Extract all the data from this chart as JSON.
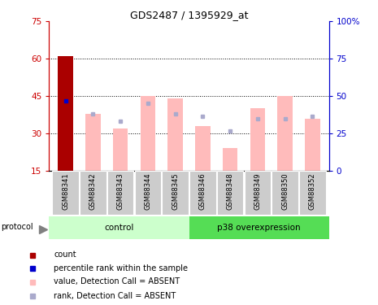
{
  "title": "GDS2487 / 1395929_at",
  "samples": [
    "GSM88341",
    "GSM88342",
    "GSM88343",
    "GSM88344",
    "GSM88345",
    "GSM88346",
    "GSM88348",
    "GSM88349",
    "GSM88350",
    "GSM88352"
  ],
  "value_bars": [
    61,
    38,
    32,
    45,
    44,
    33,
    24,
    40,
    45,
    36
  ],
  "rank_dots": [
    43,
    38,
    35,
    42,
    38,
    37,
    31,
    36,
    36,
    37
  ],
  "count_bar_idx": 0,
  "ylim_left": [
    15,
    75
  ],
  "ylim_right": [
    0,
    100
  ],
  "yticks_left": [
    15,
    30,
    45,
    60,
    75
  ],
  "yticks_right": [
    0,
    25,
    50,
    75,
    100
  ],
  "ytick_labels_right": [
    "0",
    "25",
    "50",
    "75",
    "100%"
  ],
  "n_control": 5,
  "bar_width": 0.55,
  "color_dark_red": "#AA0000",
  "color_pink": "#FFBBBB",
  "color_blue_dark": "#0000CC",
  "color_blue_light": "#AAAACC",
  "color_control_bg": "#CCFFCC",
  "color_p38_bg": "#55DD55",
  "color_label_bg": "#CCCCCC",
  "left_axis_color": "#CC0000",
  "right_axis_color": "#0000CC"
}
